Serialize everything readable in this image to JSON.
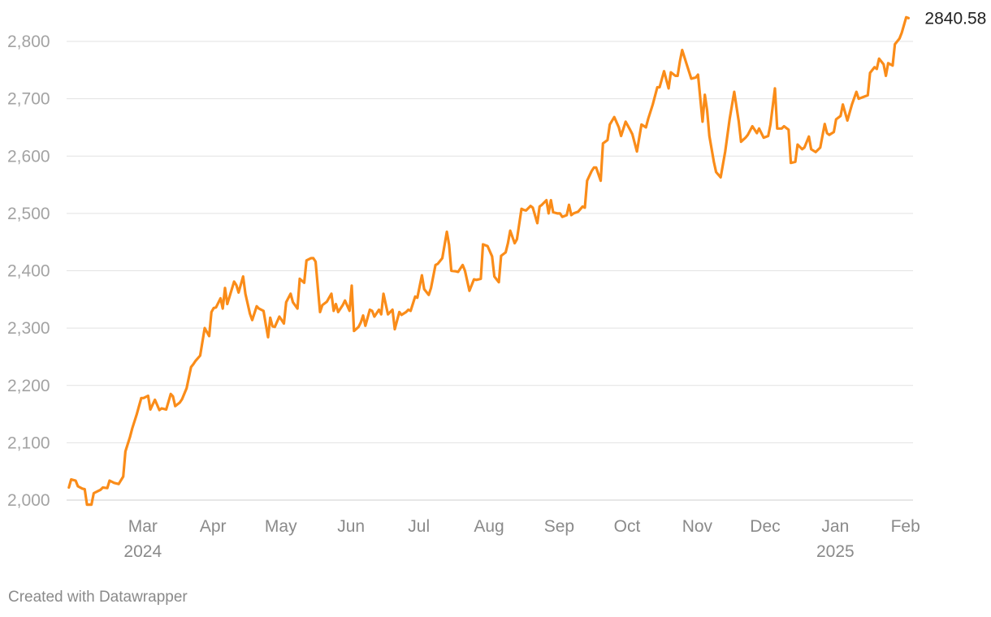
{
  "chart_data": {
    "type": "line",
    "x_start": "2024-02-01",
    "x_end": "2025-02-09",
    "ylim": [
      2000,
      2860
    ],
    "grid": true,
    "line_color": "#fa8c19",
    "y_ticks": [
      2000,
      2100,
      2200,
      2300,
      2400,
      2500,
      2600,
      2700,
      2800
    ],
    "y_tick_labels": [
      "2,000",
      "2,100",
      "2,200",
      "2,300",
      "2,400",
      "2,500",
      "2,600",
      "2,700",
      "2,800"
    ],
    "x_ticks": [
      {
        "date": "2024-03-01",
        "label": "Mar",
        "year": "2024"
      },
      {
        "date": "2024-04-01",
        "label": "Apr",
        "year": ""
      },
      {
        "date": "2024-05-01",
        "label": "May",
        "year": ""
      },
      {
        "date": "2024-06-01",
        "label": "Jun",
        "year": ""
      },
      {
        "date": "2024-07-01",
        "label": "Jul",
        "year": ""
      },
      {
        "date": "2024-08-01",
        "label": "Aug",
        "year": ""
      },
      {
        "date": "2024-09-01",
        "label": "Sep",
        "year": ""
      },
      {
        "date": "2024-10-01",
        "label": "Oct",
        "year": ""
      },
      {
        "date": "2024-11-01",
        "label": "Nov",
        "year": ""
      },
      {
        "date": "2024-12-01",
        "label": "Dec",
        "year": ""
      },
      {
        "date": "2025-01-01",
        "label": "Jan",
        "year": "2025"
      },
      {
        "date": "2025-02-01",
        "label": "Feb",
        "year": ""
      }
    ],
    "end_label": "2840.58",
    "series": [
      {
        "x": [
          "2024-02-02",
          "2024-02-03",
          "2024-02-05",
          "2024-02-06",
          "2024-02-08",
          "2024-02-09",
          "2024-02-10",
          "2024-02-12",
          "2024-02-13",
          "2024-02-15",
          "2024-02-16",
          "2024-02-17",
          "2024-02-19",
          "2024-02-20",
          "2024-02-22",
          "2024-02-24",
          "2024-02-26",
          "2024-02-27",
          "2024-02-29",
          "2024-03-01",
          "2024-03-03",
          "2024-03-05",
          "2024-03-06",
          "2024-03-08",
          "2024-03-09",
          "2024-03-11",
          "2024-03-13",
          "2024-03-14",
          "2024-03-16",
          "2024-03-18",
          "2024-03-19",
          "2024-03-20",
          "2024-03-22",
          "2024-03-23",
          "2024-03-25",
          "2024-03-27",
          "2024-03-28",
          "2024-03-29",
          "2024-03-31",
          "2024-04-02",
          "2024-04-04",
          "2024-04-05",
          "2024-04-06",
          "2024-04-07",
          "2024-04-09",
          "2024-04-10",
          "2024-04-11",
          "2024-04-12",
          "2024-04-13",
          "2024-04-15",
          "2024-04-16",
          "2024-04-17",
          "2024-04-19",
          "2024-04-20",
          "2024-04-22",
          "2024-04-23",
          "2024-04-25",
          "2024-04-26",
          "2024-04-28",
          "2024-04-30",
          "2024-05-01",
          "2024-05-02",
          "2024-05-03",
          "2024-05-05",
          "2024-05-07",
          "2024-05-08",
          "2024-05-10",
          "2024-05-11",
          "2024-05-13",
          "2024-05-14",
          "2024-05-16",
          "2024-05-17",
          "2024-05-19",
          "2024-05-20",
          "2024-05-21",
          "2024-05-23",
          "2024-05-24",
          "2024-05-26",
          "2024-05-28",
          "2024-05-29",
          "2024-05-30",
          "2024-05-31",
          "2024-06-02",
          "2024-06-03",
          "2024-06-05",
          "2024-06-06",
          "2024-06-07",
          "2024-06-09",
          "2024-06-10",
          "2024-06-11",
          "2024-06-12",
          "2024-06-14",
          "2024-06-15",
          "2024-06-16",
          "2024-06-18",
          "2024-06-19",
          "2024-06-20",
          "2024-06-22",
          "2024-06-24",
          "2024-06-25",
          "2024-06-27",
          "2024-06-28",
          "2024-06-30",
          "2024-07-01",
          "2024-07-02",
          "2024-07-04",
          "2024-07-05",
          "2024-07-07",
          "2024-07-08",
          "2024-07-10",
          "2024-07-11",
          "2024-07-13",
          "2024-07-14",
          "2024-07-16",
          "2024-07-18",
          "2024-07-19",
          "2024-07-20",
          "2024-07-22",
          "2024-07-23",
          "2024-07-25",
          "2024-07-26",
          "2024-07-28",
          "2024-07-30",
          "2024-07-31",
          "2024-08-02",
          "2024-08-03",
          "2024-08-05",
          "2024-08-07",
          "2024-08-08",
          "2024-08-10",
          "2024-08-11",
          "2024-08-13",
          "2024-08-14",
          "2024-08-15",
          "2024-08-17",
          "2024-08-18",
          "2024-08-20",
          "2024-08-21",
          "2024-08-22",
          "2024-08-24",
          "2024-08-25",
          "2024-08-27",
          "2024-08-28",
          "2024-08-29",
          "2024-08-31",
          "2024-09-01",
          "2024-09-02",
          "2024-09-03",
          "2024-09-05",
          "2024-09-06",
          "2024-09-07",
          "2024-09-09",
          "2024-09-10",
          "2024-09-11",
          "2024-09-12",
          "2024-09-14",
          "2024-09-16",
          "2024-09-17",
          "2024-09-18",
          "2024-09-20",
          "2024-09-21",
          "2024-09-22",
          "2024-09-24",
          "2024-09-25",
          "2024-09-27",
          "2024-09-28",
          "2024-09-30",
          "2024-10-02",
          "2024-10-03",
          "2024-10-05",
          "2024-10-07",
          "2024-10-08",
          "2024-10-10",
          "2024-10-12",
          "2024-10-14",
          "2024-10-15",
          "2024-10-17",
          "2024-10-19",
          "2024-10-20",
          "2024-10-22",
          "2024-10-24",
          "2024-10-25",
          "2024-10-27",
          "2024-10-28",
          "2024-10-29",
          "2024-10-30",
          "2024-11-01",
          "2024-11-03",
          "2024-11-04",
          "2024-11-05",
          "2024-11-06",
          "2024-11-08",
          "2024-11-09",
          "2024-11-10",
          "2024-11-11",
          "2024-11-13",
          "2024-11-14",
          "2024-11-16",
          "2024-11-18",
          "2024-11-20",
          "2024-11-22",
          "2024-11-24",
          "2024-11-25",
          "2024-11-27",
          "2024-11-28",
          "2024-11-30",
          "2024-12-02",
          "2024-12-03",
          "2024-12-05",
          "2024-12-07",
          "2024-12-08",
          "2024-12-10",
          "2024-12-11",
          "2024-12-13",
          "2024-12-14",
          "2024-12-16",
          "2024-12-17",
          "2024-12-19",
          "2024-12-20",
          "2024-12-22",
          "2024-12-23",
          "2024-12-25",
          "2024-12-26",
          "2024-12-28",
          "2024-12-30",
          "2025-01-01",
          "2025-01-02",
          "2025-01-03",
          "2025-01-05",
          "2025-01-06",
          "2025-01-08",
          "2025-01-09",
          "2025-01-11",
          "2025-01-13",
          "2025-01-15",
          "2025-01-16",
          "2025-01-18",
          "2025-01-20",
          "2025-01-21",
          "2025-01-23",
          "2025-01-24",
          "2025-01-25",
          "2025-01-27",
          "2025-01-28",
          "2025-01-29",
          "2025-01-31",
          "2025-02-01",
          "2025-02-03",
          "2025-02-04",
          "2025-02-06",
          "2025-02-07"
        ],
        "values": [
          2022,
          2036,
          2034,
          2024,
          2020,
          2019,
          1992,
          1992,
          2012,
          2016,
          2018,
          2022,
          2021,
          2034,
          2030,
          2028,
          2041,
          2085,
          2110,
          2125,
          2150,
          2178,
          2178,
          2182,
          2158,
          2175,
          2157,
          2160,
          2158,
          2185,
          2181,
          2164,
          2170,
          2176,
          2195,
          2232,
          2237,
          2243,
          2252,
          2300,
          2286,
          2328,
          2335,
          2336,
          2352,
          2334,
          2370,
          2342,
          2355,
          2381,
          2375,
          2362,
          2390,
          2360,
          2325,
          2314,
          2338,
          2334,
          2330,
          2284,
          2318,
          2303,
          2302,
          2320,
          2308,
          2345,
          2360,
          2345,
          2334,
          2386,
          2379,
          2418,
          2422,
          2422,
          2416,
          2328,
          2340,
          2346,
          2360,
          2330,
          2342,
          2328,
          2340,
          2348,
          2330,
          2374,
          2295,
          2302,
          2310,
          2322,
          2304,
          2332,
          2330,
          2320,
          2332,
          2324,
          2360,
          2324,
          2332,
          2298,
          2328,
          2323,
          2328,
          2332,
          2330,
          2355,
          2353,
          2392,
          2368,
          2358,
          2370,
          2410,
          2412,
          2422,
          2468,
          2445,
          2400,
          2399,
          2398,
          2410,
          2400,
          2365,
          2385,
          2384,
          2386,
          2446,
          2443,
          2425,
          2390,
          2380,
          2426,
          2432,
          2448,
          2470,
          2448,
          2455,
          2508,
          2506,
          2505,
          2513,
          2510,
          2483,
          2512,
          2515,
          2523,
          2500,
          2523,
          2502,
          2500,
          2500,
          2494,
          2497,
          2515,
          2497,
          2500,
          2503,
          2512,
          2510,
          2557,
          2574,
          2580,
          2580,
          2557,
          2622,
          2628,
          2655,
          2668,
          2650,
          2635,
          2660,
          2646,
          2638,
          2608,
          2655,
          2650,
          2665,
          2690,
          2720,
          2720,
          2748,
          2718,
          2746,
          2740,
          2740,
          2765,
          2785,
          2760,
          2735,
          2736,
          2737,
          2742,
          2660,
          2707,
          2680,
          2635,
          2590,
          2572,
          2563,
          2608,
          2665,
          2712,
          2660,
          2625,
          2632,
          2637,
          2652,
          2640,
          2648,
          2632,
          2635,
          2655,
          2718,
          2648,
          2648,
          2652,
          2646,
          2588,
          2590,
          2620,
          2612,
          2615,
          2634,
          2612,
          2607,
          2615,
          2656,
          2640,
          2637,
          2642,
          2664,
          2670,
          2690,
          2662,
          2690,
          2712,
          2700,
          2703,
          2706,
          2745,
          2755,
          2752,
          2770,
          2760,
          2740,
          2762,
          2758,
          2795,
          2805,
          2815,
          2842,
          2840.58
        ]
      }
    ]
  },
  "footer": {
    "credit": "Created with Datawrapper"
  }
}
